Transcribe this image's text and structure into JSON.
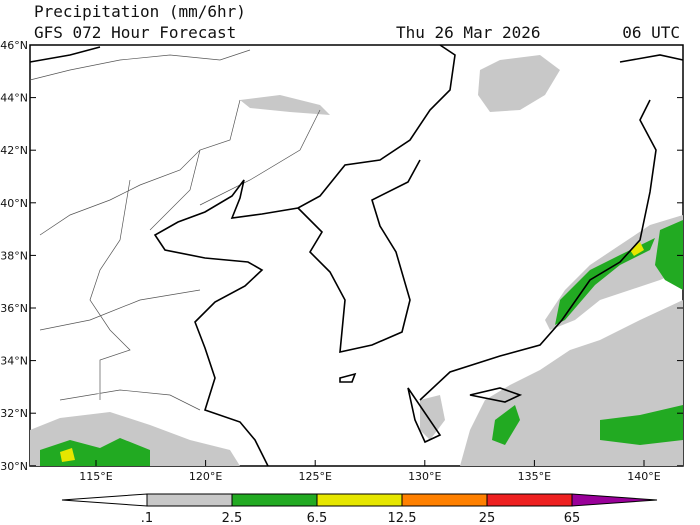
{
  "header": {
    "title": "Precipitation (mm/6hr)",
    "subtitle": "GFS 072 Hour Forecast",
    "date": "Thu 26 Mar 2026",
    "time": "06 UTC"
  },
  "map": {
    "lat_labels": [
      "46°N",
      "44°N",
      "42°N",
      "40°N",
      "38°N",
      "36°N",
      "34°N",
      "32°N",
      "30°N"
    ],
    "lon_labels": [
      "115°E",
      "120°E",
      "125°E",
      "130°E",
      "135°E",
      "140°E"
    ]
  },
  "legend": {
    "labels": [
      ".1",
      "2.5",
      "6.5",
      "12.5",
      "25",
      "65"
    ],
    "colors": [
      "#ffffff",
      "#c8c8c8",
      "#22aa22",
      "#e6e600",
      "#ff8000",
      "#ee2020",
      "#990099"
    ]
  }
}
